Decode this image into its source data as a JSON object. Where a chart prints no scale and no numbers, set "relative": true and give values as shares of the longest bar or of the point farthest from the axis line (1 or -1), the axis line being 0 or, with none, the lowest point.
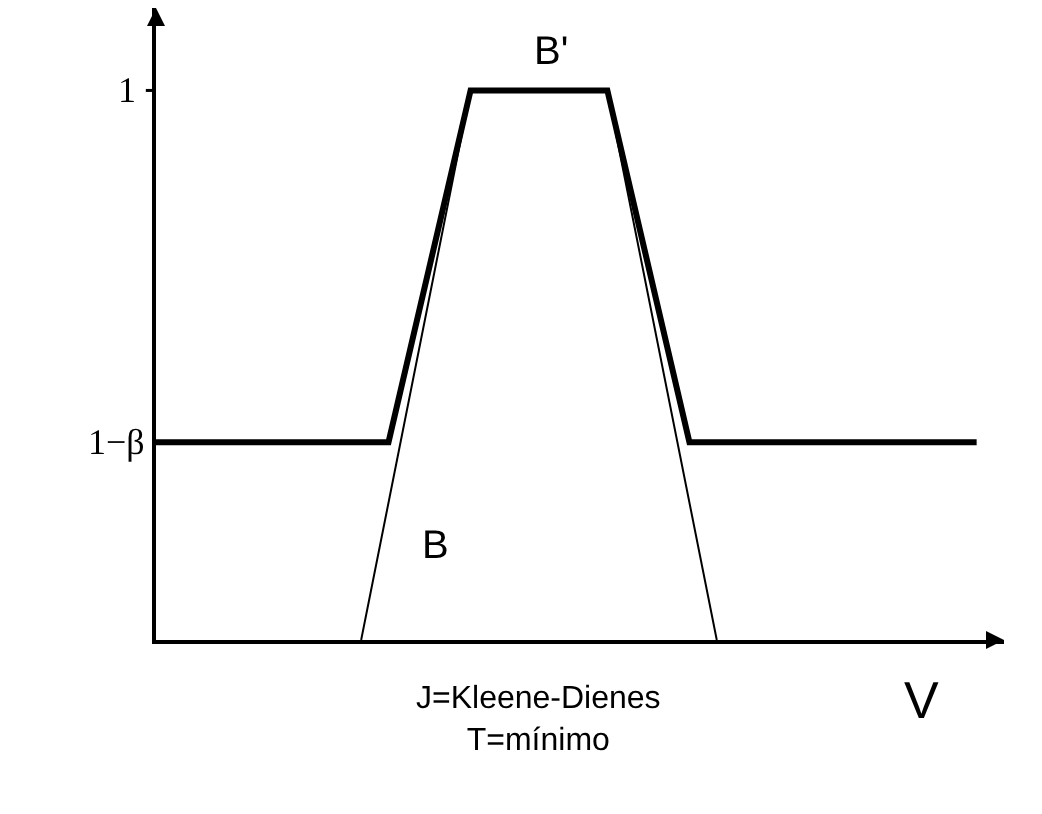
{
  "chart_data": {
    "type": "line",
    "relative": true,
    "xlabel": "V",
    "categories": [
      null,
      null,
      null,
      null,
      null,
      null,
      null,
      null,
      null,
      null,
      null,
      null,
      null,
      null,
      null,
      null,
      null,
      null,
      null,
      null,
      null,
      null,
      null,
      null,
      null,
      null,
      null,
      null,
      null,
      null,
      null,
      null,
      null,
      null,
      null,
      null,
      null,
      null,
      null,
      null,
      null,
      null,
      null,
      null,
      null,
      null,
      null,
      null,
      null,
      null,
      null,
      null,
      null,
      null,
      null,
      null,
      null,
      null,
      null,
      null,
      null
    ],
    "series": [
      {
        "color": "#000000",
        "values": [
          null,
          null,
          null,
          null,
          null,
          null,
          null,
          null,
          null,
          null,
          null,
          null,
          null,
          null,
          null,
          0,
          null,
          null,
          null,
          null,
          null,
          null,
          null,
          1,
          null,
          null,
          null,
          null,
          null,
          null,
          null,
          null,
          null,
          1,
          null,
          null,
          null,
          null,
          null,
          null,
          null,
          0,
          null,
          null,
          null,
          null,
          null,
          null,
          null,
          null,
          null,
          null,
          null,
          null,
          null,
          null,
          null,
          null,
          null,
          null,
          null
        ]
      },
      {
        "color": "#000000",
        "values": [
          0.36,
          null,
          null,
          null,
          null,
          null,
          null,
          null,
          null,
          null,
          null,
          null,
          null,
          null,
          null,
          null,
          null,
          0.36,
          null,
          null,
          null,
          null,
          null,
          1,
          null,
          null,
          null,
          null,
          null,
          null,
          null,
          null,
          null,
          1,
          null,
          null,
          null,
          null,
          null,
          0.36,
          null,
          null,
          null,
          null,
          null,
          null,
          null,
          null,
          null,
          null,
          null,
          null,
          null,
          null,
          null,
          null,
          null,
          null,
          null,
          null,
          0.36
        ]
      }
    ],
    "marker": "none",
    "line_style": "solid",
    "annotations": [
      "1",
      "1−β",
      "B'",
      "B",
      "J=Kleene-Dienes\nT=mínimo"
    ]
  }
}
